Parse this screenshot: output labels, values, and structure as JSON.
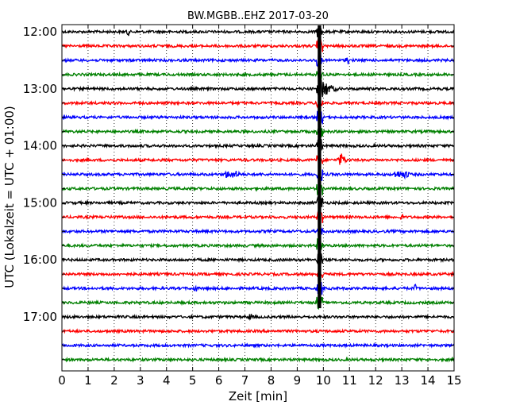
{
  "chart_data": {
    "type": "line",
    "title": "BW.MGBB..EHZ 2017-03-20",
    "xlabel": "Zeit  [min]",
    "ylabel": "UTC (Lokalzeit = UTC + 01:00)",
    "xlim": [
      0,
      15
    ],
    "x_ticks": [
      "0",
      "1",
      "2",
      "3",
      "4",
      "5",
      "6",
      "7",
      "8",
      "9",
      "10",
      "11",
      "12",
      "13",
      "14",
      "15"
    ],
    "y_ticks": [
      "12:00",
      "13:00",
      "14:00",
      "15:00",
      "16:00",
      "17:00"
    ],
    "grid": "dotted vertical lines at each minute",
    "trace_start_times": [
      "12:00",
      "12:15",
      "12:30",
      "12:45",
      "13:00",
      "13:15",
      "13:30",
      "13:45",
      "14:00",
      "14:15",
      "14:30",
      "14:45",
      "15:00",
      "15:15",
      "15:30",
      "15:45",
      "16:00",
      "16:15",
      "16:30",
      "16:45",
      "17:00",
      "17:15",
      "17:30",
      "17:45"
    ],
    "trace_colors": [
      "#000000",
      "#ff0000",
      "#0000ff",
      "#008000"
    ],
    "events": [
      {
        "start": "12:00",
        "minute": 9.85,
        "kind": "large earthquake, long coda spanning traces 12:00–16:45"
      },
      {
        "start": "13:00",
        "minute": 10.0,
        "kind": "strong arrival"
      },
      {
        "start": "14:15",
        "minute": 10.7,
        "kind": "local event"
      },
      {
        "start": "14:30",
        "minute": 13.0,
        "kind": "burst"
      },
      {
        "start": "14:30",
        "minute": 6.5,
        "kind": "burst"
      },
      {
        "start": "15:15",
        "minute": 1.9,
        "kind": "spike"
      },
      {
        "start": "15:15",
        "minute": 13.0,
        "kind": "spike"
      },
      {
        "start": "16:30",
        "minute": 13.5,
        "kind": "spike"
      },
      {
        "start": "16:30",
        "minute": 5.1,
        "kind": "spike"
      },
      {
        "start": "17:00",
        "minute": 7.2,
        "kind": "spike"
      },
      {
        "start": "12:00",
        "minute": 2.5,
        "kind": "spike"
      },
      {
        "start": "12:30",
        "minute": 10.9,
        "kind": "spike"
      }
    ]
  }
}
